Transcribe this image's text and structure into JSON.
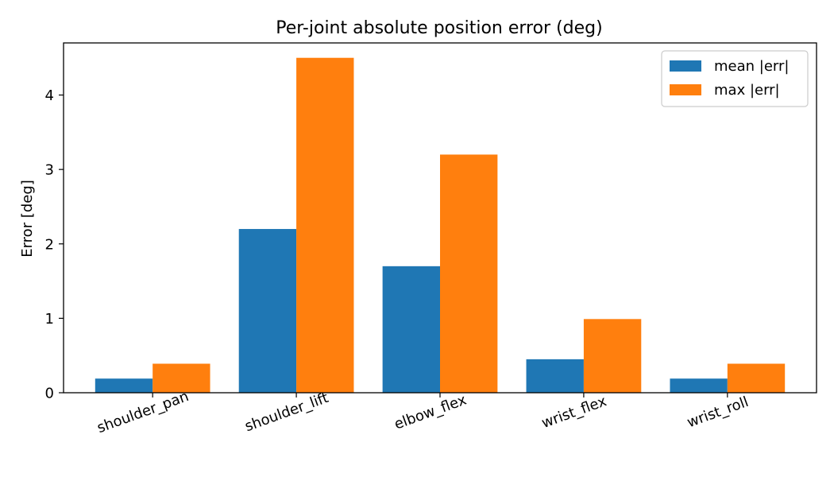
{
  "chart_data": {
    "type": "bar",
    "title": "Per-joint absolute position error (deg)",
    "xlabel": "",
    "ylabel": "Error [deg]",
    "ylim": [
      0,
      4.7
    ],
    "yticks": [
      0,
      1,
      2,
      3,
      4
    ],
    "categories": [
      "shoulder_pan",
      "shoulder_lift",
      "elbow_flex",
      "wrist_flex",
      "wrist_roll"
    ],
    "series": [
      {
        "name": "mean |err|",
        "color": "#1f77b4",
        "values": [
          0.19,
          2.2,
          1.7,
          0.45,
          0.19
        ]
      },
      {
        "name": "max |err|",
        "color": "#ff7f0e",
        "values": [
          0.39,
          4.5,
          3.2,
          0.99,
          0.39
        ]
      }
    ],
    "legend": "top-right",
    "grid": false,
    "xtick_rotation_deg": 20
  }
}
